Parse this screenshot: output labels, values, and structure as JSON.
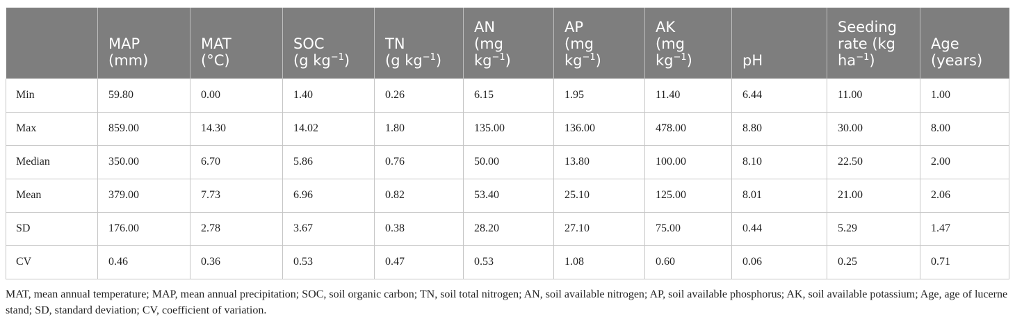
{
  "table": {
    "headers": [
      {
        "lines": [
          ""
        ]
      },
      {
        "lines": [
          "MAP",
          "(mm)"
        ]
      },
      {
        "lines": [
          "MAT",
          "(°C)"
        ]
      },
      {
        "lines": [
          "SOC",
          "(g kg^−1)"
        ]
      },
      {
        "lines": [
          "TN",
          "(g kg^−1)"
        ]
      },
      {
        "lines": [
          "AN",
          "(mg",
          "kg^−1)"
        ]
      },
      {
        "lines": [
          "AP",
          "(mg",
          "kg^−1)"
        ]
      },
      {
        "lines": [
          "AK",
          "(mg",
          "kg^−1)"
        ]
      },
      {
        "lines": [
          "pH"
        ]
      },
      {
        "lines": [
          "Seeding",
          "rate (kg",
          "ha^−1)"
        ]
      },
      {
        "lines": [
          "Age",
          "(years)"
        ]
      }
    ],
    "rows": [
      [
        "Min",
        "59.80",
        "0.00",
        "1.40",
        "0.26",
        "6.15",
        "1.95",
        "11.40",
        "6.44",
        "11.00",
        "1.00"
      ],
      [
        "Max",
        "859.00",
        "14.30",
        "14.02",
        "1.80",
        "135.00",
        "136.00",
        "478.00",
        "8.80",
        "30.00",
        "8.00"
      ],
      [
        "Median",
        "350.00",
        "6.70",
        "5.86",
        "0.76",
        "50.00",
        "13.80",
        "100.00",
        "8.10",
        "22.50",
        "2.00"
      ],
      [
        "Mean",
        "379.00",
        "7.73",
        "6.96",
        "0.82",
        "53.40",
        "25.10",
        "125.00",
        "8.01",
        "21.00",
        "2.06"
      ],
      [
        "SD",
        "176.00",
        "2.78",
        "3.67",
        "0.38",
        "28.20",
        "27.10",
        "75.00",
        "0.44",
        "5.29",
        "1.47"
      ],
      [
        "CV",
        "0.46",
        "0.36",
        "0.53",
        "0.47",
        "0.53",
        "1.08",
        "0.60",
        "0.06",
        "0.25",
        "0.71"
      ]
    ]
  },
  "footnote": "MAT, mean annual temperature; MAP, mean annual precipitation; SOC, soil organic carbon; TN, soil total nitrogen; AN, soil available nitrogen; AP, soil available phosphorus; AK, soil available potassium; Age, age of lucerne stand; SD, standard deviation; CV, coefficient of variation."
}
